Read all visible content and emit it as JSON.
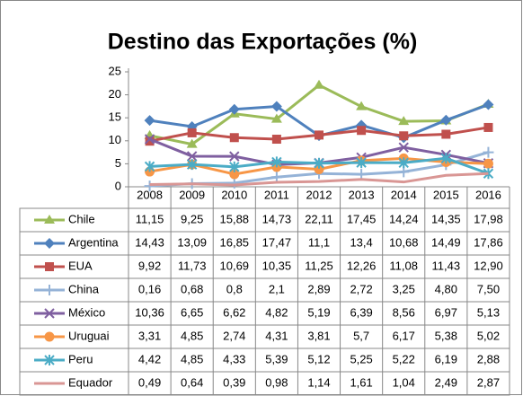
{
  "chart_data": {
    "type": "line",
    "title": "Destino das Exportações (%)",
    "categories": [
      "2008",
      "2009",
      "2010",
      "2011",
      "2012",
      "2013",
      "2014",
      "2015",
      "2016"
    ],
    "ylim": [
      0,
      25
    ],
    "yticks": [
      0,
      5,
      10,
      15,
      20,
      25
    ],
    "series": [
      {
        "name": "Chile",
        "color": "#9bbb59",
        "marker": "triangle",
        "values": [
          11.15,
          9.25,
          15.88,
          14.73,
          22.11,
          17.45,
          14.24,
          14.35,
          17.98
        ],
        "value_labels": [
          "11,15",
          "9,25",
          "15,88",
          "14,73",
          "22,11",
          "17,45",
          "14,24",
          "14,35",
          "17,98"
        ]
      },
      {
        "name": "Argentina",
        "color": "#4f81bd",
        "marker": "diamond",
        "values": [
          14.43,
          13.09,
          16.85,
          17.47,
          11.1,
          13.4,
          10.68,
          14.49,
          17.86
        ],
        "value_labels": [
          "14,43",
          "13,09",
          "16,85",
          "17,47",
          "11,1",
          "13,4",
          "10,68",
          "14,49",
          "17,86"
        ]
      },
      {
        "name": "EUA",
        "color": "#c0504d",
        "marker": "square",
        "values": [
          9.92,
          11.73,
          10.69,
          10.35,
          11.25,
          12.26,
          11.08,
          11.43,
          12.9
        ],
        "value_labels": [
          "9,92",
          "11,73",
          "10,69",
          "10,35",
          "11,25",
          "12,26",
          "11,08",
          "11,43",
          "12,90"
        ]
      },
      {
        "name": "China",
        "color": "#95b3d7",
        "marker": "plus",
        "values": [
          0.16,
          0.68,
          0.8,
          2.1,
          2.89,
          2.72,
          3.25,
          4.8,
          7.5
        ],
        "value_labels": [
          "0,16",
          "0,68",
          "0,8",
          "2,1",
          "2,89",
          "2,72",
          "3,25",
          "4,80",
          "7,50"
        ]
      },
      {
        "name": "México",
        "color": "#7f5fa0",
        "marker": "cross",
        "values": [
          10.36,
          6.65,
          6.62,
          4.82,
          5.19,
          6.39,
          8.56,
          6.97,
          5.13
        ],
        "value_labels": [
          "10,36",
          "6,65",
          "6,62",
          "4,82",
          "5,19",
          "6,39",
          "8,56",
          "6,97",
          "5,13"
        ]
      },
      {
        "name": "Uruguai",
        "color": "#f79646",
        "marker": "circle",
        "values": [
          3.31,
          4.85,
          2.74,
          4.31,
          3.81,
          5.7,
          6.17,
          5.38,
          5.02
        ],
        "value_labels": [
          "3,31",
          "4,85",
          "2,74",
          "4,31",
          "3,81",
          "5,7",
          "6,17",
          "5,38",
          "5,02"
        ]
      },
      {
        "name": "Peru",
        "color": "#4bacc6",
        "marker": "star",
        "values": [
          4.42,
          4.85,
          4.33,
          5.39,
          5.12,
          5.25,
          5.22,
          6.19,
          2.88
        ],
        "value_labels": [
          "4,42",
          "4,85",
          "4,33",
          "5,39",
          "5,12",
          "5,25",
          "5,22",
          "6,19",
          "2,88"
        ]
      },
      {
        "name": "Equador",
        "color": "#d99694",
        "marker": "none",
        "values": [
          0.49,
          0.64,
          0.39,
          0.98,
          1.14,
          1.61,
          1.04,
          2.49,
          2.87
        ],
        "value_labels": [
          "0,49",
          "0,64",
          "0,39",
          "0,98",
          "1,14",
          "1,61",
          "1,04",
          "2,49",
          "2,87"
        ]
      }
    ]
  }
}
